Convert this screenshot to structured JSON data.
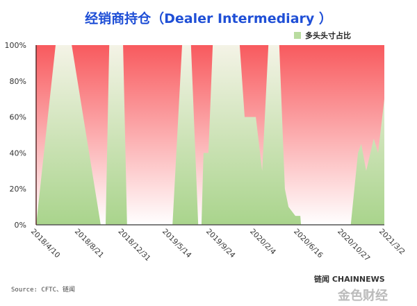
{
  "chart_data": {
    "type": "area",
    "title": "经销商持仓（Dealer Intermediary ）",
    "legend": {
      "label": "多头头寸占比",
      "placement": "top-right"
    },
    "xlabel": "",
    "ylabel": "",
    "ylim": [
      0,
      100
    ],
    "yticks": [
      "0%",
      "20%",
      "40%",
      "60%",
      "80%",
      "100%"
    ],
    "xticks": [
      "2018/4/10",
      "2018/8/21",
      "2018/12/31",
      "2019/5/14",
      "2019/9/24",
      "2020/2/4",
      "2020/6/16",
      "2020/10/27",
      "2021/3/2"
    ],
    "xrange": [
      "2018/4/10",
      "2021/3/2"
    ],
    "series": [
      {
        "name": "多头头寸占比",
        "points": [
          [
            "2018/4/10",
            0
          ],
          [
            "2018/6/8",
            100
          ],
          [
            "2018/7/27",
            100
          ],
          [
            "2018/10/23",
            0
          ],
          [
            "2018/11/7",
            0
          ],
          [
            "2018/11/18",
            100
          ],
          [
            "2018/12/30",
            100
          ],
          [
            "2019/1/11",
            0
          ],
          [
            "2019/5/29",
            0
          ],
          [
            "2019/6/27",
            100
          ],
          [
            "2019/7/24",
            100
          ],
          [
            "2019/8/15",
            0
          ],
          [
            "2019/8/25",
            0
          ],
          [
            "2019/8/31",
            40
          ],
          [
            "2019/9/15",
            40
          ],
          [
            "2019/9/28",
            100
          ],
          [
            "2019/12/19",
            100
          ],
          [
            "2020/1/3",
            60
          ],
          [
            "2020/2/6",
            60
          ],
          [
            "2020/2/25",
            30
          ],
          [
            "2020/3/15",
            100
          ],
          [
            "2020/4/17",
            100
          ],
          [
            "2020/5/4",
            20
          ],
          [
            "2020/5/15",
            10
          ],
          [
            "2020/6/5",
            5
          ],
          [
            "2020/6/20",
            5
          ],
          [
            "2020/6/22",
            0
          ],
          [
            "2020/11/20",
            0
          ],
          [
            "2020/12/12",
            40
          ],
          [
            "2020/12/22",
            45
          ],
          [
            "2021/1/6",
            30
          ],
          [
            "2021/1/29",
            48
          ],
          [
            "2021/2/11",
            40
          ],
          [
            "2021/3/2",
            70
          ]
        ]
      }
    ],
    "colors": {
      "long_top": "#f4f3e6",
      "long_bottom": "#a9d48c",
      "rest_top": "#f85a5e",
      "rest_bottom": "#ffffff"
    },
    "grid": false
  },
  "source": "Source: CFTC、链闻",
  "logo": "链闻 CHAINNEWS",
  "logo2": "金色财经"
}
